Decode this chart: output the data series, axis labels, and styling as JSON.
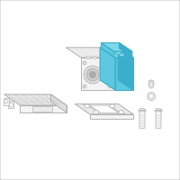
{
  "background_color": "#ffffff",
  "border_color": "#c8c8c8",
  "line_color": "#aaaaaa",
  "line_color_dark": "#888888",
  "highlight_color": "#5ec8e0",
  "highlight_top": "#7dd8eb",
  "highlight_right": "#3aaecc",
  "highlight_edge": "#3aaecc",
  "part_fill": "#f4f4f4",
  "part_fill2": "#ebebeb",
  "part_fill3": "#e0e0e0",
  "fig_width": 2.0,
  "fig_height": 2.0,
  "dpi": 100
}
